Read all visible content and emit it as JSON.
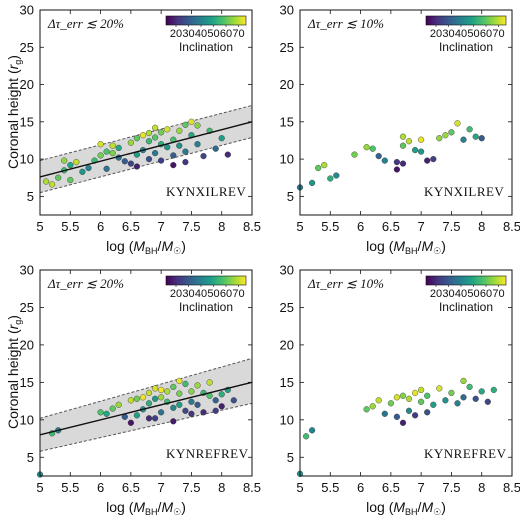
{
  "colors": {
    "band_fill": "#d9d9d9",
    "band_edge": "#555555",
    "fit_line": "#111111",
    "point_edge": "#333333",
    "colormap": "viridis"
  },
  "chart_data": [
    {
      "type": "scatter",
      "xlabel": "log (M_BH/M_☉)",
      "ylabel": "Coronal height (r_g)",
      "xlim": [
        5,
        8.5
      ],
      "ylim": [
        2.5,
        30
      ],
      "xticks": [
        5,
        5.5,
        6,
        6.5,
        7,
        7.5,
        8,
        8.5
      ],
      "yticks": [
        5,
        10,
        15,
        20,
        25,
        30
      ],
      "condition": "Δτ_err ≲ 20%",
      "model": "KYNXILREV",
      "colorbar": {
        "label": "Inclination",
        "ticks": [
          20,
          30,
          40,
          50,
          60,
          70
        ],
        "range": [
          12,
          76
        ]
      },
      "fit": {
        "x": [
          5,
          8.5
        ],
        "y": [
          7.6,
          15.0
        ]
      },
      "band": {
        "upper": [
          9.8,
          17.2
        ],
        "lower": [
          5.5,
          12.9
        ]
      },
      "points": [
        [
          5.1,
          7.0,
          68
        ],
        [
          5.2,
          6.6,
          70
        ],
        [
          5.3,
          7.5,
          60
        ],
        [
          5.4,
          8.5,
          55
        ],
        [
          5.5,
          9.2,
          50
        ],
        [
          5.4,
          9.8,
          65
        ],
        [
          5.6,
          9.6,
          70
        ],
        [
          5.7,
          8.3,
          45
        ],
        [
          5.5,
          7.2,
          60
        ],
        [
          5.8,
          8.8,
          40
        ],
        [
          5.9,
          9.8,
          55
        ],
        [
          6.0,
          10.5,
          62
        ],
        [
          6.1,
          11.0,
          58
        ],
        [
          6.2,
          11.8,
          70
        ],
        [
          6.0,
          12.0,
          72
        ],
        [
          6.3,
          10.2,
          35
        ],
        [
          6.4,
          9.7,
          30
        ],
        [
          6.3,
          11.5,
          50
        ],
        [
          6.5,
          12.2,
          66
        ],
        [
          6.5,
          9.4,
          25
        ],
        [
          6.6,
          10.6,
          48
        ],
        [
          6.6,
          12.8,
          60
        ],
        [
          6.7,
          13.2,
          74
        ],
        [
          6.7,
          11.2,
          42
        ],
        [
          6.8,
          12.4,
          55
        ],
        [
          6.8,
          13.5,
          68
        ],
        [
          6.9,
          10.8,
          38
        ],
        [
          6.9,
          14.2,
          70
        ],
        [
          7.0,
          12.0,
          52
        ],
        [
          7.0,
          13.6,
          62
        ],
        [
          7.0,
          9.8,
          24
        ],
        [
          7.1,
          11.6,
          46
        ],
        [
          7.1,
          14.0,
          72
        ],
        [
          7.2,
          12.6,
          57
        ],
        [
          7.2,
          10.5,
          30
        ],
        [
          7.3,
          13.8,
          66
        ],
        [
          7.3,
          11.8,
          44
        ],
        [
          7.4,
          14.6,
          60
        ],
        [
          7.4,
          9.6,
          22
        ],
        [
          7.5,
          13.2,
          50
        ],
        [
          7.5,
          15.0,
          73
        ],
        [
          7.6,
          12.0,
          40
        ],
        [
          7.6,
          14.5,
          64
        ],
        [
          7.7,
          10.4,
          26
        ],
        [
          7.8,
          13.8,
          56
        ],
        [
          7.9,
          11.4,
          34
        ],
        [
          8.0,
          12.8,
          48
        ],
        [
          8.1,
          10.6,
          20
        ],
        [
          6.1,
          8.7,
          36
        ],
        [
          6.6,
          9.0,
          18
        ],
        [
          6.8,
          10.0,
          28
        ],
        [
          7.2,
          9.2,
          16
        ],
        [
          7.4,
          11.0,
          38
        ],
        [
          6.2,
          10.8,
          63
        ],
        [
          6.9,
          12.9,
          59
        ]
      ]
    },
    {
      "type": "scatter",
      "xlabel": "log (M_BH/M_☉)",
      "ylabel": "",
      "xlim": [
        5,
        8.5
      ],
      "ylim": [
        2.5,
        30
      ],
      "xticks": [
        5,
        5.5,
        6,
        6.5,
        7,
        7.5,
        8,
        8.5
      ],
      "yticks": [
        5,
        10,
        15,
        20,
        25,
        30
      ],
      "condition": "Δτ_err ≲ 10%",
      "model": "KYNXILREV",
      "colorbar": {
        "label": "Inclination",
        "ticks": [
          20,
          30,
          40,
          50,
          60,
          70
        ],
        "range": [
          12,
          76
        ]
      },
      "points": [
        [
          5.0,
          6.2,
          38
        ],
        [
          5.2,
          6.8,
          45
        ],
        [
          5.3,
          8.8,
          60
        ],
        [
          5.4,
          9.2,
          68
        ],
        [
          5.5,
          7.4,
          52
        ],
        [
          5.6,
          7.8,
          42
        ],
        [
          5.9,
          10.6,
          62
        ],
        [
          6.1,
          11.6,
          66
        ],
        [
          6.2,
          11.4,
          58
        ],
        [
          6.3,
          10.4,
          32
        ],
        [
          6.4,
          9.8,
          40
        ],
        [
          6.6,
          9.6,
          22
        ],
        [
          6.7,
          9.4,
          20
        ],
        [
          6.7,
          11.8,
          60
        ],
        [
          6.8,
          12.4,
          70
        ],
        [
          6.9,
          11.2,
          48
        ],
        [
          7.0,
          12.6,
          74
        ],
        [
          7.0,
          11.0,
          45
        ],
        [
          7.1,
          9.8,
          18
        ],
        [
          7.2,
          10.0,
          24
        ],
        [
          7.3,
          12.8,
          65
        ],
        [
          7.4,
          13.2,
          66
        ],
        [
          7.5,
          13.6,
          60
        ],
        [
          7.6,
          14.8,
          72
        ],
        [
          7.7,
          12.6,
          40
        ],
        [
          7.8,
          14.0,
          56
        ],
        [
          7.9,
          13.0,
          50
        ],
        [
          8.0,
          12.8,
          30
        ],
        [
          6.6,
          8.6,
          16
        ],
        [
          6.7,
          13.0,
          68
        ]
      ]
    },
    {
      "type": "scatter",
      "xlabel": "log (M_BH/M_☉)",
      "ylabel": "Coronal height (r_g)",
      "xlim": [
        5,
        8.5
      ],
      "ylim": [
        2.5,
        30
      ],
      "xticks": [
        5,
        5.5,
        6,
        6.5,
        7,
        7.5,
        8,
        8.5
      ],
      "yticks": [
        5,
        10,
        15,
        20,
        25,
        30
      ],
      "condition": "Δτ_err ≲ 20%",
      "model": "KYNREFREV",
      "colorbar": {
        "label": "Inclination",
        "ticks": [
          20,
          30,
          40,
          50,
          60,
          70
        ],
        "range": [
          12,
          76
        ]
      },
      "fit": {
        "x": [
          5,
          8.5
        ],
        "y": [
          8.0,
          15.0
        ]
      },
      "band": {
        "upper": [
          10.2,
          18.2
        ],
        "lower": [
          5.8,
          12.2
        ]
      },
      "points": [
        [
          5.0,
          2.7,
          44
        ],
        [
          5.2,
          8.2,
          56
        ],
        [
          5.3,
          8.6,
          40
        ],
        [
          6.1,
          10.8,
          50
        ],
        [
          6.2,
          11.5,
          60
        ],
        [
          6.3,
          12.0,
          66
        ],
        [
          6.4,
          10.4,
          30
        ],
        [
          6.5,
          12.6,
          70
        ],
        [
          6.6,
          10.6,
          48
        ],
        [
          6.6,
          12.8,
          62
        ],
        [
          6.7,
          13.0,
          74
        ],
        [
          6.7,
          11.4,
          44
        ],
        [
          6.8,
          12.2,
          52
        ],
        [
          6.8,
          13.6,
          70
        ],
        [
          6.9,
          10.2,
          24
        ],
        [
          6.9,
          14.2,
          72
        ],
        [
          7.0,
          13.0,
          66
        ],
        [
          7.0,
          11.0,
          36
        ],
        [
          7.0,
          14.0,
          75
        ],
        [
          7.1,
          12.4,
          56
        ],
        [
          7.1,
          13.8,
          68
        ],
        [
          7.2,
          11.6,
          42
        ],
        [
          7.2,
          14.4,
          60
        ],
        [
          7.3,
          12.0,
          48
        ],
        [
          7.3,
          13.5,
          62
        ],
        [
          7.4,
          14.8,
          56
        ],
        [
          7.4,
          11.2,
          26
        ],
        [
          7.5,
          13.8,
          64
        ],
        [
          7.5,
          12.4,
          38
        ],
        [
          7.6,
          14.6,
          66
        ],
        [
          7.6,
          12.0,
          30
        ],
        [
          7.7,
          13.6,
          54
        ],
        [
          7.7,
          11.0,
          20
        ],
        [
          7.8,
          13.2,
          58
        ],
        [
          7.8,
          15.0,
          70
        ],
        [
          7.9,
          12.6,
          32
        ],
        [
          8.0,
          13.4,
          52
        ],
        [
          8.0,
          11.8,
          18
        ],
        [
          8.1,
          14.0,
          48
        ],
        [
          8.2,
          12.6,
          28
        ],
        [
          6.5,
          9.6,
          16
        ],
        [
          6.8,
          10.2,
          20
        ],
        [
          7.2,
          9.8,
          17
        ],
        [
          7.5,
          10.8,
          22
        ],
        [
          6.0,
          11.0,
          58
        ],
        [
          6.9,
          12.8,
          46
        ],
        [
          7.3,
          15.2,
          74
        ],
        [
          7.9,
          11.2,
          24
        ]
      ]
    },
    {
      "type": "scatter",
      "xlabel": "log (M_BH/M_☉)",
      "ylabel": "",
      "xlim": [
        5,
        8.5
      ],
      "ylim": [
        2.5,
        30
      ],
      "xticks": [
        5,
        5.5,
        6,
        6.5,
        7,
        7.5,
        8,
        8.5
      ],
      "yticks": [
        5,
        10,
        15,
        20,
        25,
        30
      ],
      "condition": "Δτ_err ≲ 10%",
      "model": "KYNREFREV",
      "colorbar": {
        "label": "Inclination",
        "ticks": [
          20,
          30,
          40,
          50,
          60,
          70
        ],
        "range": [
          12,
          76
        ]
      },
      "points": [
        [
          5.0,
          2.8,
          44
        ],
        [
          5.1,
          7.8,
          56
        ],
        [
          5.2,
          8.6,
          40
        ],
        [
          6.1,
          11.4,
          60
        ],
        [
          6.2,
          11.8,
          66
        ],
        [
          6.3,
          12.6,
          70
        ],
        [
          6.4,
          10.8,
          36
        ],
        [
          6.5,
          12.2,
          62
        ],
        [
          6.6,
          10.4,
          30
        ],
        [
          6.6,
          13.0,
          72
        ],
        [
          6.7,
          9.6,
          18
        ],
        [
          6.8,
          12.8,
          68
        ],
        [
          6.8,
          11.2,
          42
        ],
        [
          6.9,
          13.6,
          74
        ],
        [
          7.0,
          12.4,
          60
        ],
        [
          7.0,
          14.0,
          70
        ],
        [
          7.1,
          11.0,
          28
        ],
        [
          7.1,
          13.2,
          58
        ],
        [
          7.2,
          12.0,
          48
        ],
        [
          7.3,
          14.2,
          72
        ],
        [
          7.4,
          12.6,
          44
        ],
        [
          7.5,
          13.6,
          62
        ],
        [
          7.6,
          12.2,
          40
        ],
        [
          7.7,
          15.2,
          66
        ],
        [
          7.7,
          13.0,
          34
        ],
        [
          7.8,
          14.4,
          56
        ],
        [
          7.9,
          12.8,
          28
        ],
        [
          8.0,
          13.8,
          50
        ],
        [
          8.1,
          12.4,
          26
        ],
        [
          8.2,
          14.0,
          52
        ],
        [
          6.7,
          13.2,
          64
        ],
        [
          6.9,
          10.6,
          24
        ]
      ]
    }
  ]
}
